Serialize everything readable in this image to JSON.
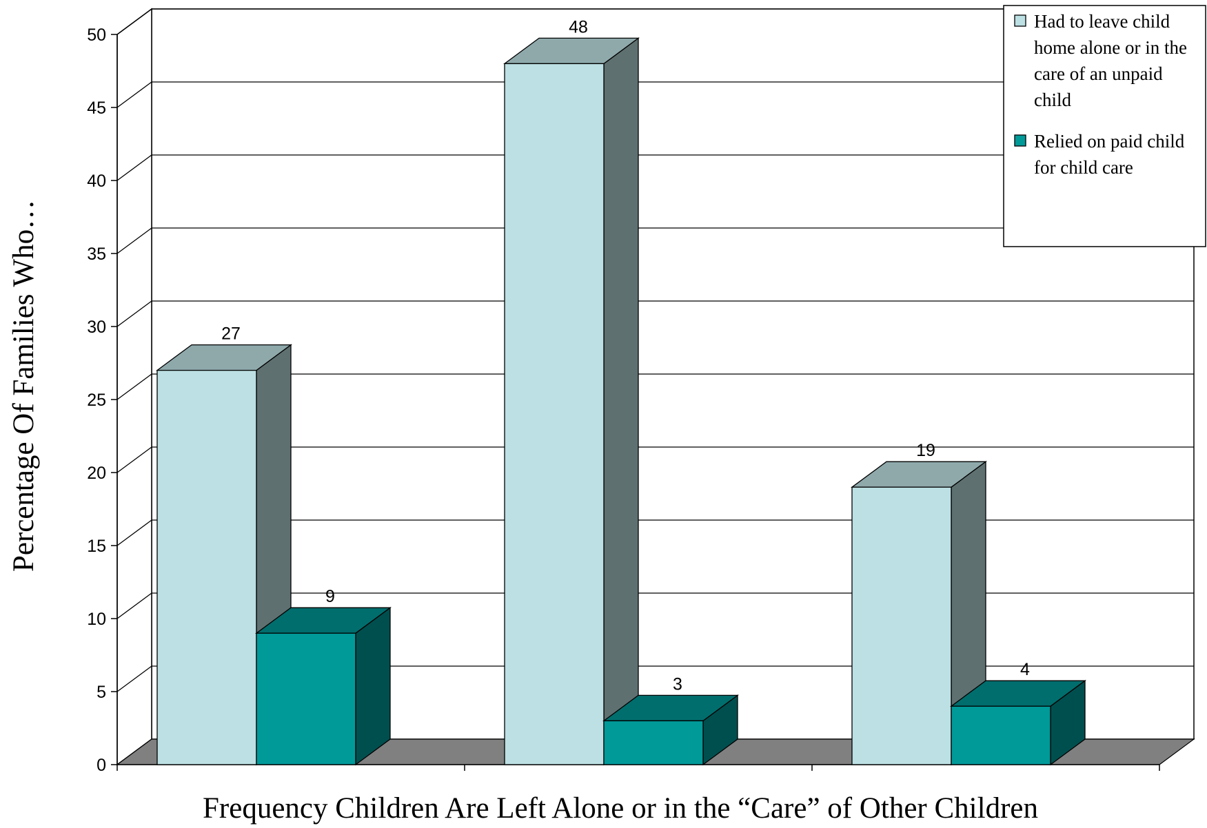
{
  "chart_data": {
    "type": "bar",
    "categories": [
      "",
      "",
      ""
    ],
    "series": [
      {
        "name": "Had to leave child home alone or in the care of an unpaid child",
        "legend_lines": [
          "Had to leave child",
          "home alone or in the",
          "care of an unpaid",
          "child"
        ],
        "values": [
          27,
          48,
          19
        ],
        "data_labels": [
          "27",
          "48",
          "19"
        ],
        "color": "#bce0e3"
      },
      {
        "name": "Relied on paid child for child care",
        "legend_lines": [
          "Relied on paid child",
          "for child care"
        ],
        "values": [
          9,
          3,
          4
        ],
        "data_labels": [
          "9",
          "3",
          "4"
        ],
        "color": "#009a99"
      }
    ],
    "title": "",
    "xlabel": "Frequency Children Are Left Alone or in the “Care” of Other Children",
    "ylabel": "Percentage Of  Families Who…",
    "ylim": [
      0,
      50
    ],
    "yticks": [
      "0",
      "5",
      "10",
      "15",
      "20",
      "25",
      "30",
      "35",
      "40",
      "45",
      "50"
    ],
    "grid": true,
    "legend_position": "top-right",
    "style": "3d",
    "colors": {
      "floor": "#808080",
      "series1_top": "#8fa9ab",
      "series1_side": "#5f7071",
      "series2_top": "#006e6d",
      "series2_side": "#004f4f"
    }
  }
}
